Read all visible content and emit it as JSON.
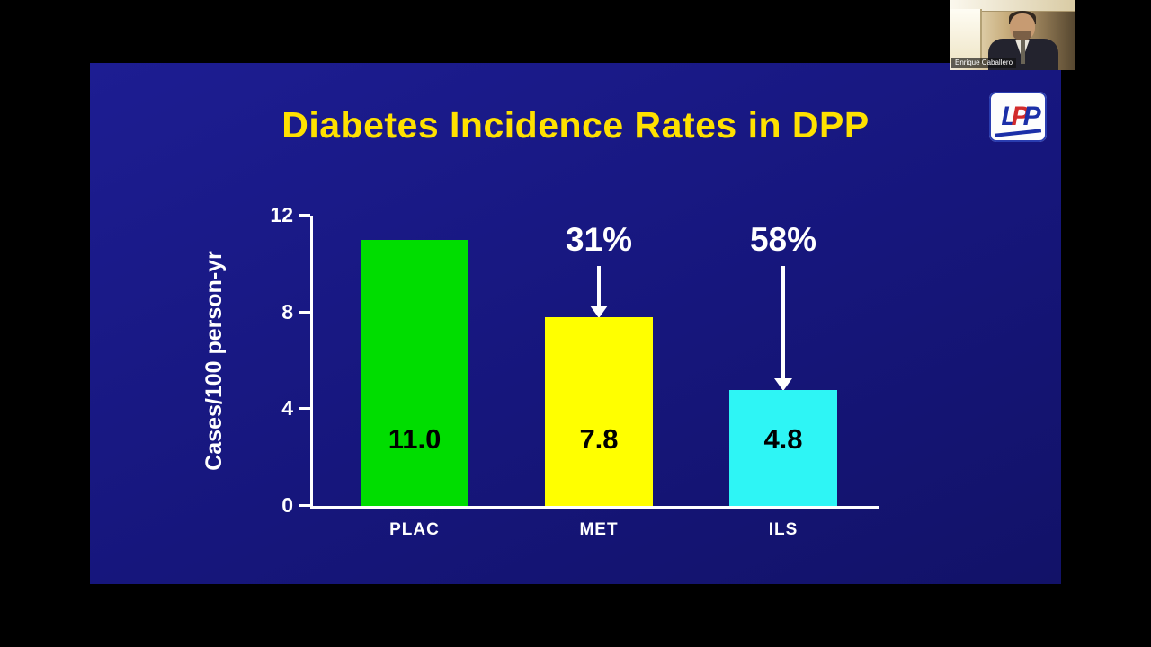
{
  "slide": {
    "title": "Diabetes Incidence Rates in DPP"
  },
  "logo": {
    "letters": [
      "L",
      "P",
      "P"
    ],
    "colors": {
      "blue": "#1b2fa8",
      "red": "#d22b2b"
    }
  },
  "webcam": {
    "name": "Enrique Caballero"
  },
  "chart_data": {
    "type": "bar",
    "title": "Diabetes Incidence Rates in DPP",
    "ylabel": "Cases/100 person-yr",
    "xlabel": "",
    "ylim": [
      0,
      12
    ],
    "yticks": [
      0,
      4,
      8,
      12
    ],
    "categories": [
      "PLAC",
      "MET",
      "ILS"
    ],
    "values": [
      11.0,
      7.8,
      4.8
    ],
    "value_labels": [
      "11.0",
      "7.8",
      "4.8"
    ],
    "reduction_labels": [
      "",
      "31%",
      "58%"
    ],
    "bar_colors": [
      "#00dd00",
      "#ffff00",
      "#2ef5f5"
    ],
    "grid": false,
    "legend": false,
    "background_color": "#17177e",
    "title_color": "#ffe100",
    "axis_color": "#ffffff"
  }
}
